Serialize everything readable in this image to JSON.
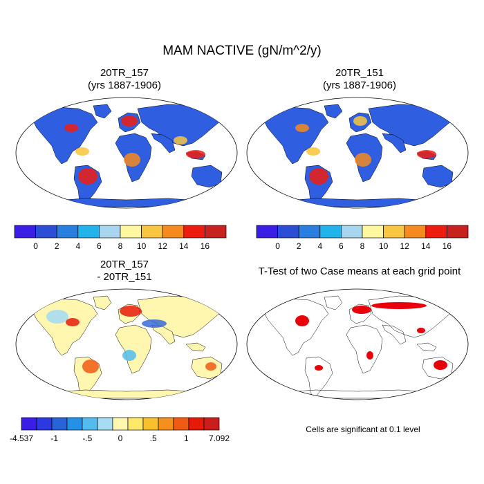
{
  "figure": {
    "title": "MAM NACTIVE (gN/m^2/y)"
  },
  "panels": [
    {
      "name": "20TR_157",
      "title_line1": "20TR_157",
      "title_line2": "(yrs 1887-1906)"
    },
    {
      "name": "20TR_151",
      "title_line1": "20TR_151",
      "title_line2": "(yrs 1887-1906)"
    },
    {
      "name": "difference",
      "title_line1": "20TR_157",
      "title_line2": "- 20TR_151"
    },
    {
      "name": "ttest",
      "title_line1": "T-Test of two Case means at each grid point"
    }
  ],
  "colorbars": {
    "absolute": {
      "colors": [
        "#3a1ee6",
        "#2a4fd6",
        "#2a7ee0",
        "#20b4ea",
        "#a8d6f0",
        "#fff6a0",
        "#f8c640",
        "#f58a1e",
        "#ee1c10",
        "#c8221e"
      ],
      "tick_labels": [
        "0",
        "2",
        "4",
        "6",
        "8",
        "10",
        "12",
        "14",
        "16"
      ]
    },
    "difference": {
      "colors": [
        "#3a1ee6",
        "#2a3ae0",
        "#2a62d8",
        "#2490e6",
        "#54bcec",
        "#a8dcf2",
        "#fff6b0",
        "#ffe86a",
        "#f8c02c",
        "#f5901e",
        "#f05a14",
        "#e61a0a",
        "#c81e1c"
      ],
      "tick_labels": [
        "-4.537",
        "-1",
        "-.5",
        "0",
        ".5",
        "1",
        "7.092"
      ]
    }
  },
  "ttest_note": "Cells are significant at 0.1 level",
  "colors": {
    "ocean": "#ffffff",
    "coast": "#000000",
    "significant": "#e8000a"
  }
}
